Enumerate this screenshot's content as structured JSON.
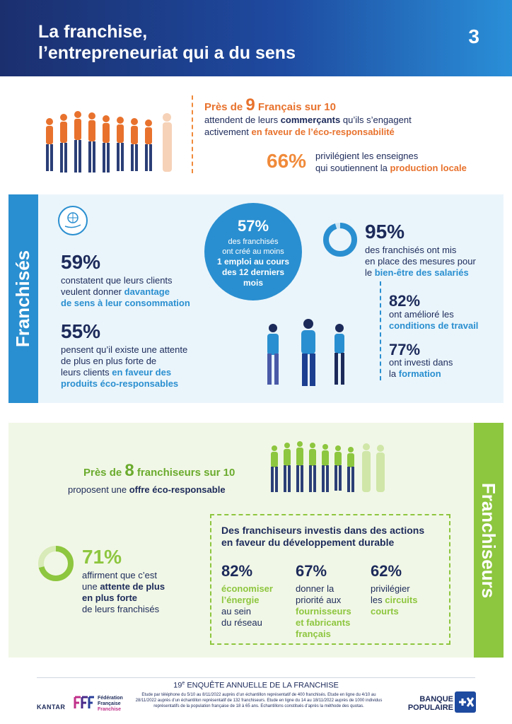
{
  "header": {
    "title": "La franchise,\nl’entrepreneuriat qui a du sens",
    "page_number": "3"
  },
  "intro": {
    "line1_pre": "Près de ",
    "line1_big": "9",
    "line1_post": " Français sur 10",
    "line2_a": "attendent de leurs ",
    "line2_b": "commerçants",
    "line2_c": " qu’ils s’engagent",
    "line3_a": "activement ",
    "line3_b": "en faveur de l’éco-responsabilité",
    "stat_pct": "66%",
    "stat_line1": "privilégient les enseignes",
    "stat_line2_a": "qui soutiennent la ",
    "stat_line2_b": "production locale"
  },
  "franchises": {
    "side_label": "Franchisés",
    "icon": "globe-hand-icon",
    "s59": {
      "pct": "59%",
      "l1": "constatent que leurs clients",
      "l2_a": "veulent donner ",
      "l2_b": "davantage",
      "l3": "de sens à leur consommation"
    },
    "s55": {
      "pct": "55%",
      "l1": "pensent qu’il existe une attente",
      "l2": "de plus en plus forte de",
      "l3_a": "leurs clients ",
      "l3_b": "en faveur des",
      "l4": "produits éco-responsables"
    },
    "s57": {
      "pct": "57%",
      "l1": "des franchisés",
      "l2": "ont créé au moins",
      "l3": "1 emploi au cours",
      "l4": "des 12 derniers",
      "l5": "mois"
    },
    "s95": {
      "pct": "95%",
      "value": 95,
      "l1": "des franchisés ont mis",
      "l2": "en place des mesures pour",
      "l3_a": "le ",
      "l3_b": "bien-être des salariés"
    },
    "s82": {
      "pct": "82%",
      "l1": "ont amélioré les",
      "l2": "conditions de travail"
    },
    "s77": {
      "pct": "77%",
      "l1": "ont investi dans",
      "l2_a": "la ",
      "l2_b": "formation"
    }
  },
  "franchiseurs": {
    "side_label": "Franchiseurs",
    "headline_pre": "Près de ",
    "headline_big": "8",
    "headline_post": " franchiseurs sur 10",
    "headline_l2_a": "proposent une ",
    "headline_l2_b": "offre éco-responsable",
    "s71": {
      "pct": "71%",
      "value": 71,
      "l1": "affirment que c’est",
      "l2_a": "une ",
      "l2_b": "attente de plus",
      "l3": "en plus forte",
      "l4": "de leurs franchisés"
    },
    "box_title_l1": "Des franchiseurs investis dans des actions",
    "box_title_l2": "en faveur du développement durable",
    "c1": {
      "pct": "82%",
      "l1": "économiser",
      "l2": "l’énergie",
      "l3": "au sein",
      "l4": "du réseau"
    },
    "c2": {
      "pct": "67%",
      "l1": "donner la",
      "l2": "priorité aux",
      "l3": "fournisseurs",
      "l4": "et fabricants",
      "l5": "français"
    },
    "c3": {
      "pct": "62%",
      "l1": "privilégier",
      "l2_a": "les ",
      "l2_b": "circuits",
      "l3": "courts"
    }
  },
  "footer": {
    "title_num": "19",
    "title_sup": "e",
    "title_rest": " ENQUÊTE ANNUELLE DE LA FRANCHISE",
    "note": "Etude par téléphone du 5/10 au 8/11/2022 auprès d’un échantillon représentatif de 400 franchisés. Etude en ligne du 4/10 au 28/11/2022 auprès d’un échantillon représentatif de 132 franchiseurs. Etude en ligne du 14 au 18/11/2022 auprès de 1000 individus représentatifs de la population française de 18 à 65 ans. Echantillons constitués d’après la méthode des quotas.",
    "kantar": "KANTAR",
    "fff_l1": "Fédération",
    "fff_l2": "Française",
    "fff_l3": "Franchise",
    "bp_l1": "BANQUE",
    "bp_l2": "POPULAIRE"
  },
  "colors": {
    "navy": "#1c2a5a",
    "blue": "#2a8fd0",
    "orange": "#e8722d",
    "green": "#8dc63f"
  }
}
